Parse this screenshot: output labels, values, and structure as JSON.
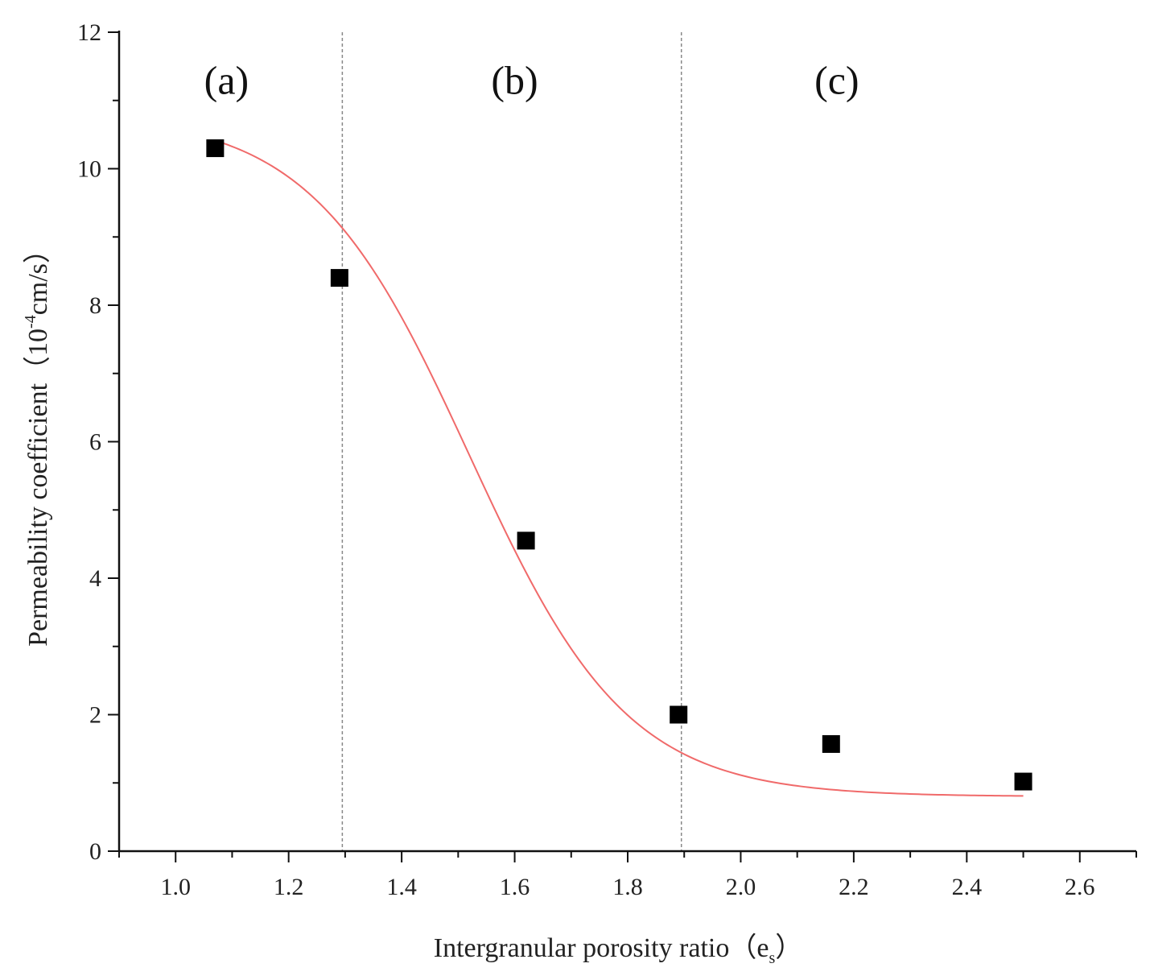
{
  "chart_data": {
    "type": "scatter",
    "title": "",
    "xlabel": {
      "main": "Intergranular porosity ratio（e",
      "sub": "s",
      "close": "）"
    },
    "ylabel": {
      "main": "Permeability coefficient（10",
      "sup": "-4",
      "unit": "cm/s）"
    },
    "xlim": [
      0.9,
      2.7
    ],
    "ylim": [
      0,
      12
    ],
    "x_ticks": [
      "1.0",
      "1.2",
      "1.4",
      "1.6",
      "1.8",
      "2.0",
      "2.2",
      "2.4",
      "2.6"
    ],
    "y_ticks": [
      "0",
      "2",
      "4",
      "6",
      "8",
      "10",
      "12"
    ],
    "grid": false,
    "legend": "none",
    "series": [
      {
        "marker": "square",
        "color": "#000000",
        "points": [
          {
            "x": 1.07,
            "y": 10.3
          },
          {
            "x": 1.29,
            "y": 8.4
          },
          {
            "x": 1.62,
            "y": 4.55
          },
          {
            "x": 1.89,
            "y": 2.0
          },
          {
            "x": 2.16,
            "y": 1.57
          },
          {
            "x": 2.5,
            "y": 1.02
          }
        ]
      }
    ],
    "fit_curve": {
      "color": "#f06a6a",
      "x_range": [
        1.07,
        2.5
      ],
      "function": "sigmoid",
      "lower": 0.8,
      "upper": 10.8,
      "center": 1.52,
      "width": 0.14
    },
    "vertical_lines": [
      {
        "x": 1.295,
        "color": "#888888",
        "style": "dashed"
      },
      {
        "x": 1.895,
        "color": "#888888",
        "style": "dashed"
      }
    ],
    "region_labels": [
      {
        "text": "(a)",
        "x": 1.09,
        "y": 11.3
      },
      {
        "text": "(b)",
        "x": 1.6,
        "y": 11.3
      },
      {
        "text": "(c)",
        "x": 2.17,
        "y": 11.3
      }
    ]
  }
}
